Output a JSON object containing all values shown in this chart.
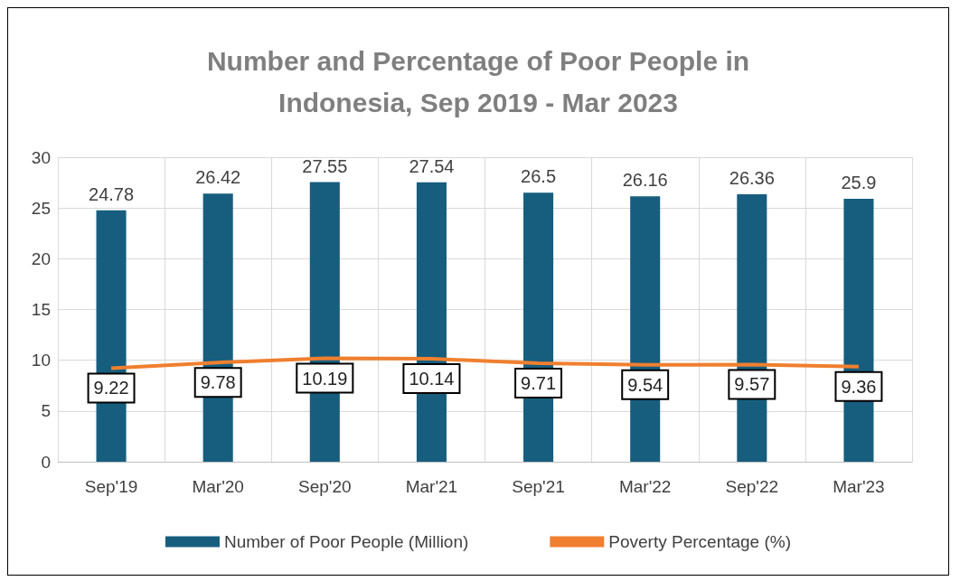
{
  "chart_data": {
    "type": "bar",
    "title": "Number and Percentage of Poor People in\nIndonesia, Sep 2019 - Mar 2023",
    "categories": [
      "Sep'19",
      "Mar'20",
      "Sep'20",
      "Mar'21",
      "Sep'21",
      "Mar'22",
      "Sep'22",
      "Mar'23"
    ],
    "series": [
      {
        "name": "Number of Poor People (Million)",
        "color": "#175e7e",
        "values": [
          24.78,
          26.42,
          27.55,
          27.54,
          26.5,
          26.16,
          26.36,
          25.9
        ]
      },
      {
        "name": "Poverty Percentage (%)",
        "type": "line",
        "color": "#f07f2f",
        "values": [
          9.22,
          9.78,
          10.19,
          10.14,
          9.71,
          9.54,
          9.57,
          9.36
        ]
      }
    ],
    "ylim": [
      0,
      30
    ],
    "yticks": [
      0,
      5,
      10,
      15,
      20,
      25,
      30
    ],
    "grid": true,
    "legend": "bottom",
    "data_labels": true
  }
}
